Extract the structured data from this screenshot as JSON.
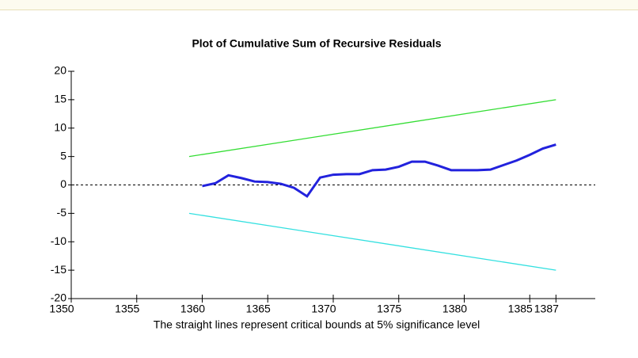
{
  "chart_data": {
    "type": "line",
    "title": "Plot of Cumulative Sum of Recursive Residuals",
    "note": "The straight lines represent critical bounds at 5% significance level",
    "xlim": [
      1350,
      1390
    ],
    "xticks": [
      1350,
      1355,
      1360,
      1365,
      1370,
      1375,
      1380,
      1385,
      1387
    ],
    "ylim": [
      -20,
      20
    ],
    "yticks": [
      -20,
      -15,
      -10,
      -5,
      0,
      5,
      10,
      15,
      20
    ],
    "series": [
      {
        "color": "#33dd33",
        "x": [
          1359,
          1387
        ],
        "values": [
          5,
          15
        ]
      },
      {
        "color": "#33e0e0",
        "x": [
          1359,
          1387
        ],
        "values": [
          -5,
          -15
        ]
      },
      {
        "color": "#2222dd",
        "x": [
          1360,
          1361,
          1362,
          1363,
          1364,
          1365,
          1366,
          1367,
          1368,
          1369,
          1370,
          1371,
          1372,
          1373,
          1374,
          1375,
          1376,
          1377,
          1378,
          1379,
          1380,
          1381,
          1382,
          1383,
          1384,
          1385,
          1386,
          1387
        ],
        "values": [
          -0.2,
          0.3,
          1.7,
          1.2,
          0.6,
          0.5,
          0.2,
          -0.5,
          -2,
          1.3,
          1.8,
          1.9,
          1.9,
          2.6,
          2.7,
          3.2,
          4.1,
          4.1,
          3.4,
          2.6,
          2.6,
          2.6,
          2.7,
          3.5,
          4.3,
          5.3,
          6.4,
          7.1
        ]
      }
    ]
  }
}
